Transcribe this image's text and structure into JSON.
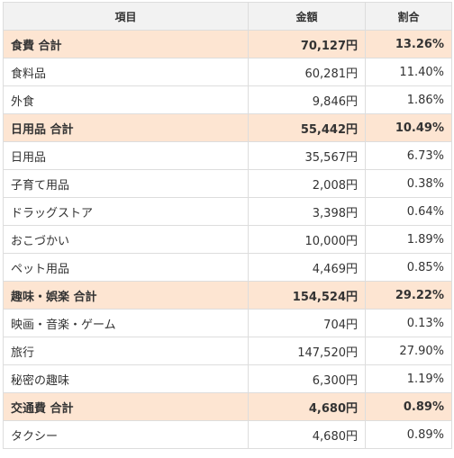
{
  "headers": [
    "項目",
    "金額",
    "割合"
  ],
  "rows": [
    {
      "name": "食費 合計",
      "amount": "70,127円",
      "pct": "13.26%",
      "subtotal": true
    },
    {
      "name": "食料品",
      "amount": "60,281円",
      "pct": "11.40%",
      "subtotal": false
    },
    {
      "name": "外食",
      "amount": "9,846円",
      "pct": "1.86%",
      "subtotal": false
    },
    {
      "name": "日用品 合計",
      "amount": "55,442円",
      "pct": "10.49%",
      "subtotal": true
    },
    {
      "name": "日用品",
      "amount": "35,567円",
      "pct": "6.73%",
      "subtotal": false
    },
    {
      "name": "子育て用品",
      "amount": "2,008円",
      "pct": "0.38%",
      "subtotal": false
    },
    {
      "name": "ドラッグストア",
      "amount": "3,398円",
      "pct": "0.64%",
      "subtotal": false
    },
    {
      "name": "おこづかい",
      "amount": "10,000円",
      "pct": "1.89%",
      "subtotal": false
    },
    {
      "name": "ペット用品",
      "amount": "4,469円",
      "pct": "0.85%",
      "subtotal": false
    },
    {
      "name": "趣味・娯楽 合計",
      "amount": "154,524円",
      "pct": "29.22%",
      "subtotal": true
    },
    {
      "name": "映画・音楽・ゲーム",
      "amount": "704円",
      "pct": "0.13%",
      "subtotal": false
    },
    {
      "name": "旅行",
      "amount": "147,520円",
      "pct": "27.90%",
      "subtotal": false
    },
    {
      "name": "秘密の趣味",
      "amount": "6,300円",
      "pct": "1.19%",
      "subtotal": false
    },
    {
      "name": "交通費 合計",
      "amount": "4,680円",
      "pct": "0.89%",
      "subtotal": true
    },
    {
      "name": "タクシー",
      "amount": "4,680円",
      "pct": "0.89%",
      "subtotal": false
    }
  ],
  "colors": {
    "subtotal_bg": "#fde5d2",
    "header_bg": "#f2f2f2",
    "border": "#dddddd"
  }
}
